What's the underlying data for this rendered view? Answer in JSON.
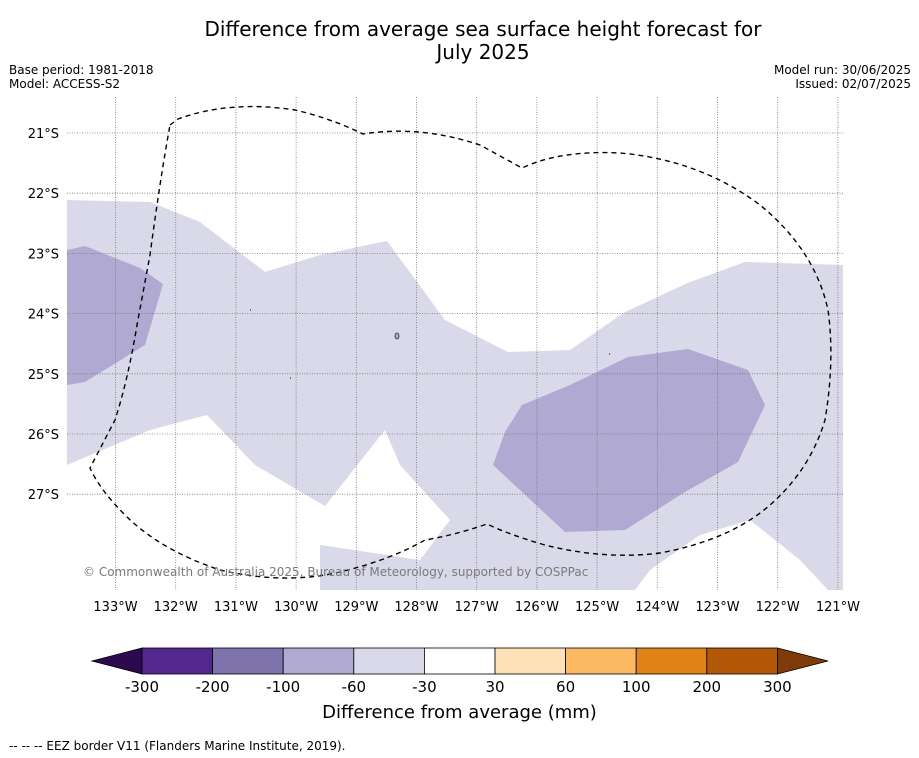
{
  "title": "Difference from average sea surface height forecast for\nJuly 2025",
  "base_period": "Base period: 1981-2018",
  "model": "Model: ACCESS-S2",
  "model_run": "Model run: 30/06/2025",
  "issued": "Issued: 02/07/2025",
  "lat_labels": [
    "21°S",
    "22°S",
    "23°S",
    "24°S",
    "25°S",
    "26°S",
    "27°S"
  ],
  "lon_labels": [
    "133°W",
    "132°W",
    "131°W",
    "130°W",
    "129°W",
    "128°W",
    "127°W",
    "126°W",
    "125°W",
    "124°W",
    "123°W",
    "122°W",
    "121°W"
  ],
  "credit": "© Commonwealth of Australia 2025, Bureau of Meteorology, supported by COSPPac",
  "colorbar": {
    "ticks": [
      "-300",
      "-200",
      "-100",
      "-60",
      "-30",
      "30",
      "60",
      "100",
      "200",
      "300"
    ],
    "colors": [
      "#2d0a4f",
      "#54278f",
      "#7f73ad",
      "#b0a9d1",
      "#d9d9ea",
      "#ffffff",
      "#fee0b6",
      "#fdb863",
      "#e08214",
      "#b35806",
      "#7f3b08"
    ],
    "label": "Difference from average (mm)"
  },
  "legend": "--  --  -- EEZ border V11 (Flanders Marine Institute, 2019).",
  "map_colors": {
    "light_purple": "#d9d9ea",
    "mid_purple": "#b0a9d1",
    "eez": "#000000",
    "grid": "#777777"
  }
}
